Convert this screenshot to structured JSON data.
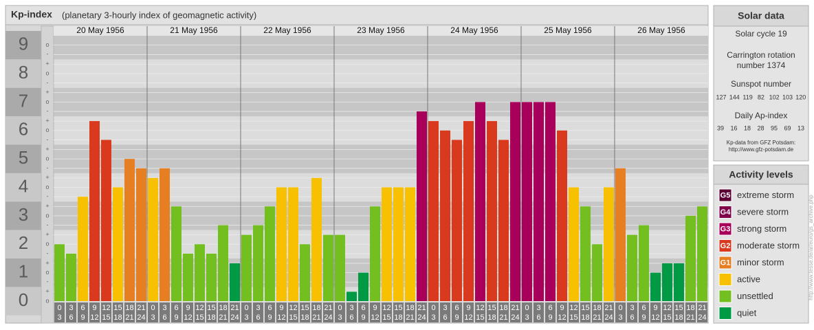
{
  "chart_data": {
    "type": "bar",
    "title": "Kp-index",
    "subtitle": "(planetary 3-hourly index of geomagnetic activity)",
    "days": [
      "20 May 1956",
      "21 May 1956",
      "22 May 1956",
      "23 May 1956",
      "24 May 1956",
      "25 May 1956",
      "26 May 1956"
    ],
    "hours": [
      [
        "0",
        "3"
      ],
      [
        "3",
        "6"
      ],
      [
        "6",
        "9"
      ],
      [
        "9",
        "12"
      ],
      [
        "12",
        "15"
      ],
      [
        "15",
        "18"
      ],
      [
        "18",
        "21"
      ],
      [
        "21",
        "24"
      ]
    ],
    "values": [
      2,
      1.67,
      3.67,
      6.33,
      5.67,
      4,
      5,
      4.67,
      4.33,
      4.67,
      3.33,
      1.67,
      2,
      1.67,
      2.67,
      1.33,
      2.33,
      2.67,
      3.33,
      4,
      4,
      2,
      4.33,
      2.33,
      2.33,
      0.33,
      1,
      3.33,
      4,
      4,
      4,
      6.67,
      6.33,
      6,
      5.67,
      6.33,
      7,
      6.33,
      5.67,
      7,
      7,
      7,
      7,
      6,
      4,
      3.33,
      2,
      4,
      4.67,
      2.33,
      2.67,
      1,
      1.33,
      1.33,
      3,
      3.33
    ],
    "colors": [
      "#72bf1f",
      "#72bf1f",
      "#f7c000",
      "#d93a1e",
      "#d93a1e",
      "#f7c000",
      "#e67e22",
      "#e67e22",
      "#f7c000",
      "#e67e22",
      "#72bf1f",
      "#72bf1f",
      "#72bf1f",
      "#72bf1f",
      "#72bf1f",
      "#009a44",
      "#72bf1f",
      "#72bf1f",
      "#72bf1f",
      "#f7c000",
      "#f7c000",
      "#72bf1f",
      "#f7c000",
      "#72bf1f",
      "#72bf1f",
      "#009a44",
      "#009a44",
      "#72bf1f",
      "#f7c000",
      "#f7c000",
      "#f7c000",
      "#a8005a",
      "#d93a1e",
      "#d93a1e",
      "#d93a1e",
      "#d93a1e",
      "#a8005a",
      "#d93a1e",
      "#d93a1e",
      "#a8005a",
      "#a8005a",
      "#a8005a",
      "#a8005a",
      "#d93a1e",
      "#f7c000",
      "#72bf1f",
      "#72bf1f",
      "#f7c000",
      "#e67e22",
      "#72bf1f",
      "#72bf1f",
      "#009a44",
      "#009a44",
      "#009a44",
      "#72bf1f",
      "#72bf1f"
    ],
    "ylim": [
      0,
      9.33
    ],
    "yticks": [
      0,
      1,
      2,
      3,
      4,
      5,
      6,
      7,
      8,
      9
    ],
    "minor_ticks": [
      {
        "value": 0,
        "label": "o"
      },
      {
        "value": 0.33,
        "label": "+"
      },
      {
        "value": 0.67,
        "label": "-"
      },
      {
        "value": 1,
        "label": "o"
      },
      {
        "value": 1.33,
        "label": "+"
      },
      {
        "value": 1.67,
        "label": "-"
      },
      {
        "value": 2,
        "label": "o"
      },
      {
        "value": 2.33,
        "label": "+"
      },
      {
        "value": 2.67,
        "label": "-"
      },
      {
        "value": 3,
        "label": "o"
      },
      {
        "value": 3.33,
        "label": "+"
      },
      {
        "value": 3.67,
        "label": "-"
      },
      {
        "value": 4,
        "label": "o"
      },
      {
        "value": 4.33,
        "label": "+"
      },
      {
        "value": 4.67,
        "label": "-"
      },
      {
        "value": 5,
        "label": "o"
      },
      {
        "value": 5.33,
        "label": "+"
      },
      {
        "value": 5.67,
        "label": "-"
      },
      {
        "value": 6,
        "label": "o"
      },
      {
        "value": 6.33,
        "label": "+"
      },
      {
        "value": 6.67,
        "label": "-"
      },
      {
        "value": 7,
        "label": "o"
      },
      {
        "value": 7.33,
        "label": "+"
      },
      {
        "value": 7.67,
        "label": "-"
      },
      {
        "value": 8,
        "label": "o"
      },
      {
        "value": 8.33,
        "label": "+"
      },
      {
        "value": 8.67,
        "label": "-"
      },
      {
        "value": 9,
        "label": "o"
      }
    ],
    "grid": true
  },
  "solar_data": {
    "title": "Solar data",
    "cycle": "Solar cycle 19",
    "carrington": [
      "Carrington rotation",
      "number 1374"
    ],
    "sunspot_label": "Sunspot number",
    "sunspot": [
      127,
      144,
      119,
      82,
      102,
      103,
      120
    ],
    "ap_label": "Daily Ap-index",
    "ap": [
      39,
      16,
      18,
      28,
      95,
      69,
      13
    ],
    "source": [
      "Kp-data from GFZ Potsdam:",
      "http://www.gfz-potsdam.de"
    ]
  },
  "activity_levels": {
    "title": "Activity levels",
    "items": [
      {
        "badge": "G5",
        "label": "extreme storm",
        "color": "#5a0032"
      },
      {
        "badge": "G4",
        "label": "severe storm",
        "color": "#80004a"
      },
      {
        "badge": "G3",
        "label": "strong storm",
        "color": "#a8005a"
      },
      {
        "badge": "G2",
        "label": "moderate storm",
        "color": "#d93a1e"
      },
      {
        "badge": "G1",
        "label": "minor storm",
        "color": "#e67e22"
      },
      {
        "label": "active",
        "color": "#f7c000"
      },
      {
        "label": "unsettled",
        "color": "#72bf1f"
      },
      {
        "label": "quiet",
        "color": "#009a44"
      }
    ]
  },
  "watermark": "http://www.tesse.de/ar/euro/gs_archive.php"
}
